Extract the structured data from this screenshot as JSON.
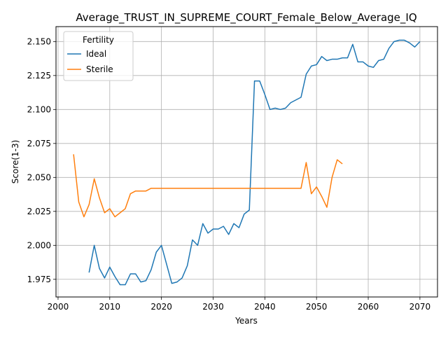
{
  "chart_data": {
    "type": "line",
    "title": "Average_TRUST_IN_SUPREME_COURT_Female_Below_Average_IQ",
    "xlabel": "Years",
    "ylabel": "Score(1-3)",
    "xlim": [
      1999.6,
      2073.4
    ],
    "ylim": [
      1.962,
      2.161
    ],
    "x_ticks": [
      2000,
      2010,
      2020,
      2030,
      2040,
      2050,
      2060,
      2070
    ],
    "y_ticks": [
      1.975,
      2.0,
      2.025,
      2.05,
      2.075,
      2.1,
      2.125,
      2.15
    ],
    "grid": true,
    "legend": {
      "title": "Fertility",
      "placement": "top-left"
    },
    "series": [
      {
        "name": "Ideal",
        "color": "#1f77b4",
        "x": [
          2006,
          2007,
          2008,
          2009,
          2010,
          2011,
          2012,
          2013,
          2014,
          2015,
          2016,
          2017,
          2018,
          2019,
          2020,
          2021,
          2022,
          2023,
          2024,
          2025,
          2026,
          2027,
          2028,
          2029,
          2030,
          2031,
          2032,
          2033,
          2034,
          2035,
          2036,
          2037,
          2038,
          2039,
          2040,
          2041,
          2042,
          2043,
          2044,
          2045,
          2046,
          2047,
          2048,
          2049,
          2050,
          2051,
          2052,
          2053,
          2054,
          2055,
          2056,
          2057,
          2058,
          2059,
          2060,
          2061,
          2062,
          2063,
          2064,
          2065,
          2066,
          2067,
          2068,
          2069,
          2070
        ],
        "y": [
          1.98,
          2.0,
          1.983,
          1.976,
          1.984,
          1.977,
          1.971,
          1.971,
          1.979,
          1.979,
          1.973,
          1.974,
          1.982,
          1.995,
          2.0,
          1.986,
          1.972,
          1.973,
          1.976,
          1.985,
          2.004,
          2.0,
          2.016,
          2.009,
          2.012,
          2.012,
          2.014,
          2.008,
          2.016,
          2.013,
          2.023,
          2.026,
          2.121,
          2.121,
          2.111,
          2.1,
          2.101,
          2.1,
          2.101,
          2.105,
          2.107,
          2.109,
          2.126,
          2.132,
          2.133,
          2.139,
          2.136,
          2.137,
          2.137,
          2.138,
          2.138,
          2.148,
          2.135,
          2.135,
          2.132,
          2.131,
          2.136,
          2.137,
          2.145,
          2.15,
          2.151,
          2.151,
          2.149,
          2.146,
          2.15
        ]
      },
      {
        "name": "Sterile",
        "color": "#ff7f0e",
        "x": [
          2003,
          2004,
          2005,
          2006,
          2007,
          2008,
          2009,
          2010,
          2011,
          2012,
          2013,
          2014,
          2015,
          2016,
          2017,
          2018,
          2019,
          2020,
          2021,
          2022,
          2023,
          2024,
          2025,
          2026,
          2027,
          2028,
          2029,
          2030,
          2031,
          2032,
          2033,
          2034,
          2035,
          2036,
          2037,
          2038,
          2039,
          2040,
          2041,
          2042,
          2043,
          2044,
          2045,
          2046,
          2047,
          2048,
          2049,
          2050,
          2051,
          2052,
          2053,
          2054,
          2055
        ],
        "y": [
          2.067,
          2.032,
          2.021,
          2.03,
          2.049,
          2.035,
          2.024,
          2.027,
          2.021,
          2.024,
          2.027,
          2.038,
          2.04,
          2.04,
          2.04,
          2.042,
          2.042,
          2.042,
          2.042,
          2.042,
          2.042,
          2.042,
          2.042,
          2.042,
          2.042,
          2.042,
          2.042,
          2.042,
          2.042,
          2.042,
          2.042,
          2.042,
          2.042,
          2.042,
          2.042,
          2.042,
          2.042,
          2.042,
          2.042,
          2.042,
          2.042,
          2.042,
          2.042,
          2.042,
          2.042,
          2.061,
          2.038,
          2.043,
          2.036,
          2.028,
          2.05,
          2.063,
          2.06
        ]
      }
    ]
  }
}
